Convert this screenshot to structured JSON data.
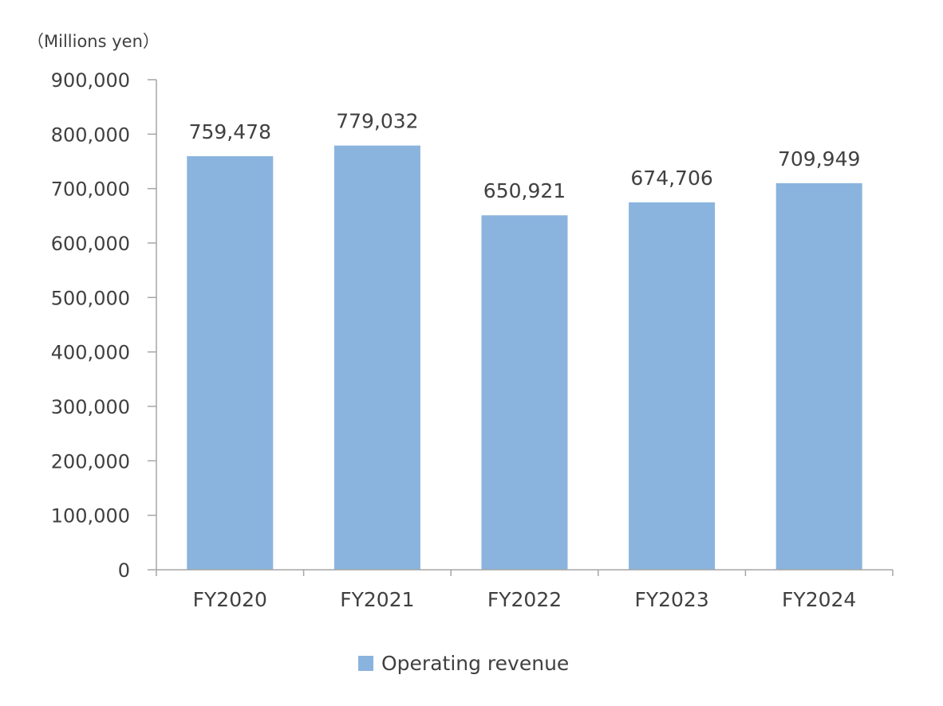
{
  "chart_data": {
    "type": "bar",
    "title": "",
    "unit_label": "（Millions  yen）",
    "xlabel": "",
    "ylabel": "",
    "categories": [
      "FY2020",
      "FY2021",
      "FY2022",
      "FY2023",
      "FY2024"
    ],
    "series": [
      {
        "name": "Operating revenue",
        "values": [
          759478,
          779032,
          650921,
          674706,
          709949
        ],
        "color": "#8AB4DE"
      }
    ],
    "data_labels": [
      "759,478",
      "779,032",
      "650,921",
      "674,706",
      "709,949"
    ],
    "ylim": [
      0,
      900000
    ],
    "yticks": [
      0,
      100000,
      200000,
      300000,
      400000,
      500000,
      600000,
      700000,
      800000,
      900000
    ],
    "ytick_labels": [
      "0",
      "100,000",
      "200,000",
      "300,000",
      "400,000",
      "500,000",
      "600,000",
      "700,000",
      "800,000",
      "900,000"
    ],
    "grid": false,
    "legend_position": "bottom"
  }
}
